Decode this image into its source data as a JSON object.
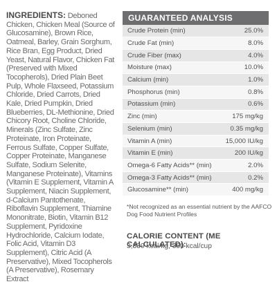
{
  "ingredients": {
    "heading": "INGREDIENTS:",
    "text": "Deboned Chicken, Chicken Meal (Source of Glucosamine), Brown Rice, Oatmeal, Barley, Grain Sorghum, Rice Bran, Egg Product, Dried Yeast, Natural Flavor, Chicken Fat (Preserved with Mixed Tocopherols), Dried Plain Beet Pulp, Whole Flaxseed, Potassium Chloride, Dried Carrots, Dried Kale, Dried Pumpkin, Dried Blueberries, DL-Methionine, Dried Chicory Root, Choline Chloride, Minerals (Zinc Sulfate, Zinc Proteinate, Iron Proteinate, Ferrous Sulfate, Copper Sulfate, Copper Proteinate, Manganese Sulfate, Sodium Selenite, Manganese Proteinate), Vitamins (Vitamin E Supplement, Vitamin A Supplement, Niacin Supplement, d-Calcium Pantothenate, Riboflavin Supplement, Thiamine Mononitrate, Biotin, Vitamin B12 Supplement, Pyridoxine Hydrochloride, Calcium Iodate, Folic Acid, Vitamin D3 Supplement), Citric Acid (A Preservative), Mixed Tocopherols (A Preservative), Rosemary Extract"
  },
  "guaranteed_analysis": {
    "title": "GUARANTEED ANALYSIS",
    "rows": [
      {
        "label": "Crude Protein (min)",
        "value": "25.0%"
      },
      {
        "label": "Crude Fat (min)",
        "value": "8.0%"
      },
      {
        "label": "Crude Fiber (max)",
        "value": "4.0%"
      },
      {
        "label": "Moisture (max)",
        "value": "10.0%"
      },
      {
        "label": "Calcium (min)",
        "value": "1.0%"
      },
      {
        "label": "Phosphorus (min)",
        "value": "0.8%"
      },
      {
        "label": "Potassium (min)",
        "value": "0.6%"
      },
      {
        "label": "Zinc (min)",
        "value": "175 mg/kg"
      },
      {
        "label": "Selenium (min)",
        "value": "0.35 mg/kg"
      },
      {
        "label": "Vitamin A (min)",
        "value": "15,000 IU/kg"
      },
      {
        "label": "Vitamin E (min)",
        "value": "200 IU/kg"
      },
      {
        "label": "Omega-6 Fatty Acids** (min)",
        "value": "2.0%"
      },
      {
        "label": "Omega-3 Fatty Acids** (min)",
        "value": "0.2%"
      },
      {
        "label": "Glucosamine** (min)",
        "value": "400 mg/kg"
      }
    ]
  },
  "footnote": "*Not recognized as an essential nutrient by the AAFCO Dog Food Nutrient Profiles",
  "calorie": {
    "title": "CALORIE CONTENT (ME CALCULATED):",
    "value": "3,330 kcal/kg, 350 kcal/cup"
  }
}
